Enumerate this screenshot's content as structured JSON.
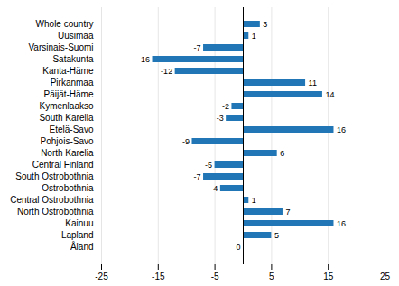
{
  "chart_data": {
    "type": "bar",
    "orientation": "horizontal",
    "categories": [
      "Whole country",
      "Uusimaa",
      "Varsinais-Suomi",
      "Satakunta",
      "Kanta-Häme",
      "Pirkanmaa",
      "Päijät-Häme",
      "Kymenlaakso",
      "South Karelia",
      "Etelä-Savo",
      "Pohjois-Savo",
      "North Karelia",
      "Central Finland",
      "South Ostrobothnia",
      "Ostrobothnia",
      "Central Ostrobothnia",
      "North Ostrobothnia",
      "Kainuu",
      "Lapland",
      "Åland"
    ],
    "values": [
      3,
      1,
      -7,
      -16,
      -12,
      11,
      14,
      -2,
      -3,
      16,
      -9,
      6,
      -5,
      -7,
      -4,
      1,
      7,
      16,
      5,
      0
    ],
    "color": "#2177b5",
    "xlim": [
      -25,
      25
    ],
    "xticks": [
      -25,
      -15,
      -5,
      5,
      15,
      25
    ],
    "grid": true,
    "data_labels": true
  }
}
